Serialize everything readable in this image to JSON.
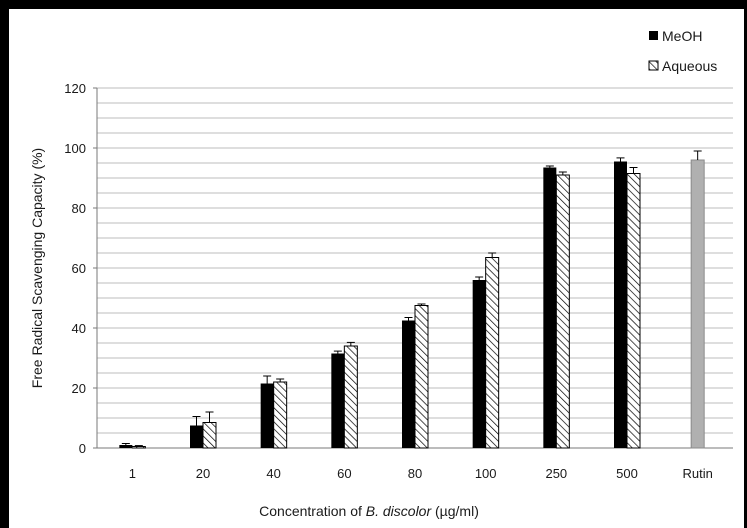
{
  "chart_data": {
    "type": "bar",
    "ylabel": "Free Radical Scavenging Capacity (%)",
    "xlabel": {
      "prefix": "Concentration of ",
      "italic": "B. discolor",
      "suffix": " (µg/ml)"
    },
    "ylim": [
      0,
      120
    ],
    "yticks": [
      0,
      20,
      40,
      60,
      80,
      100,
      120
    ],
    "grid_minor_step": 5,
    "grid": true,
    "legend_position": "top-right",
    "categories": [
      "1",
      "20",
      "40",
      "60",
      "80",
      "100",
      "250",
      "500",
      "Rutin"
    ],
    "series": [
      {
        "name": "MeOH",
        "pattern": "solid",
        "color": "#000000",
        "values": [
          1,
          7.5,
          21.5,
          31.5,
          42.5,
          56,
          93.5,
          95.5,
          null
        ],
        "errors": [
          0.5,
          3,
          2.5,
          0.8,
          1,
          1,
          0.5,
          1.2,
          null
        ]
      },
      {
        "name": "Aqueous",
        "pattern": "hatched",
        "color": "#000000",
        "values": [
          0.5,
          8.5,
          22,
          34,
          47.5,
          63.5,
          91,
          91.5,
          null
        ],
        "errors": [
          0.3,
          3.5,
          1,
          1.2,
          0.5,
          1.5,
          1,
          2,
          null
        ]
      },
      {
        "name": "",
        "pattern": "solid",
        "color": "#b0b0b0",
        "values": [
          null,
          null,
          null,
          null,
          null,
          null,
          null,
          null,
          96
        ],
        "errors": [
          null,
          null,
          null,
          null,
          null,
          null,
          null,
          null,
          3
        ]
      }
    ]
  }
}
